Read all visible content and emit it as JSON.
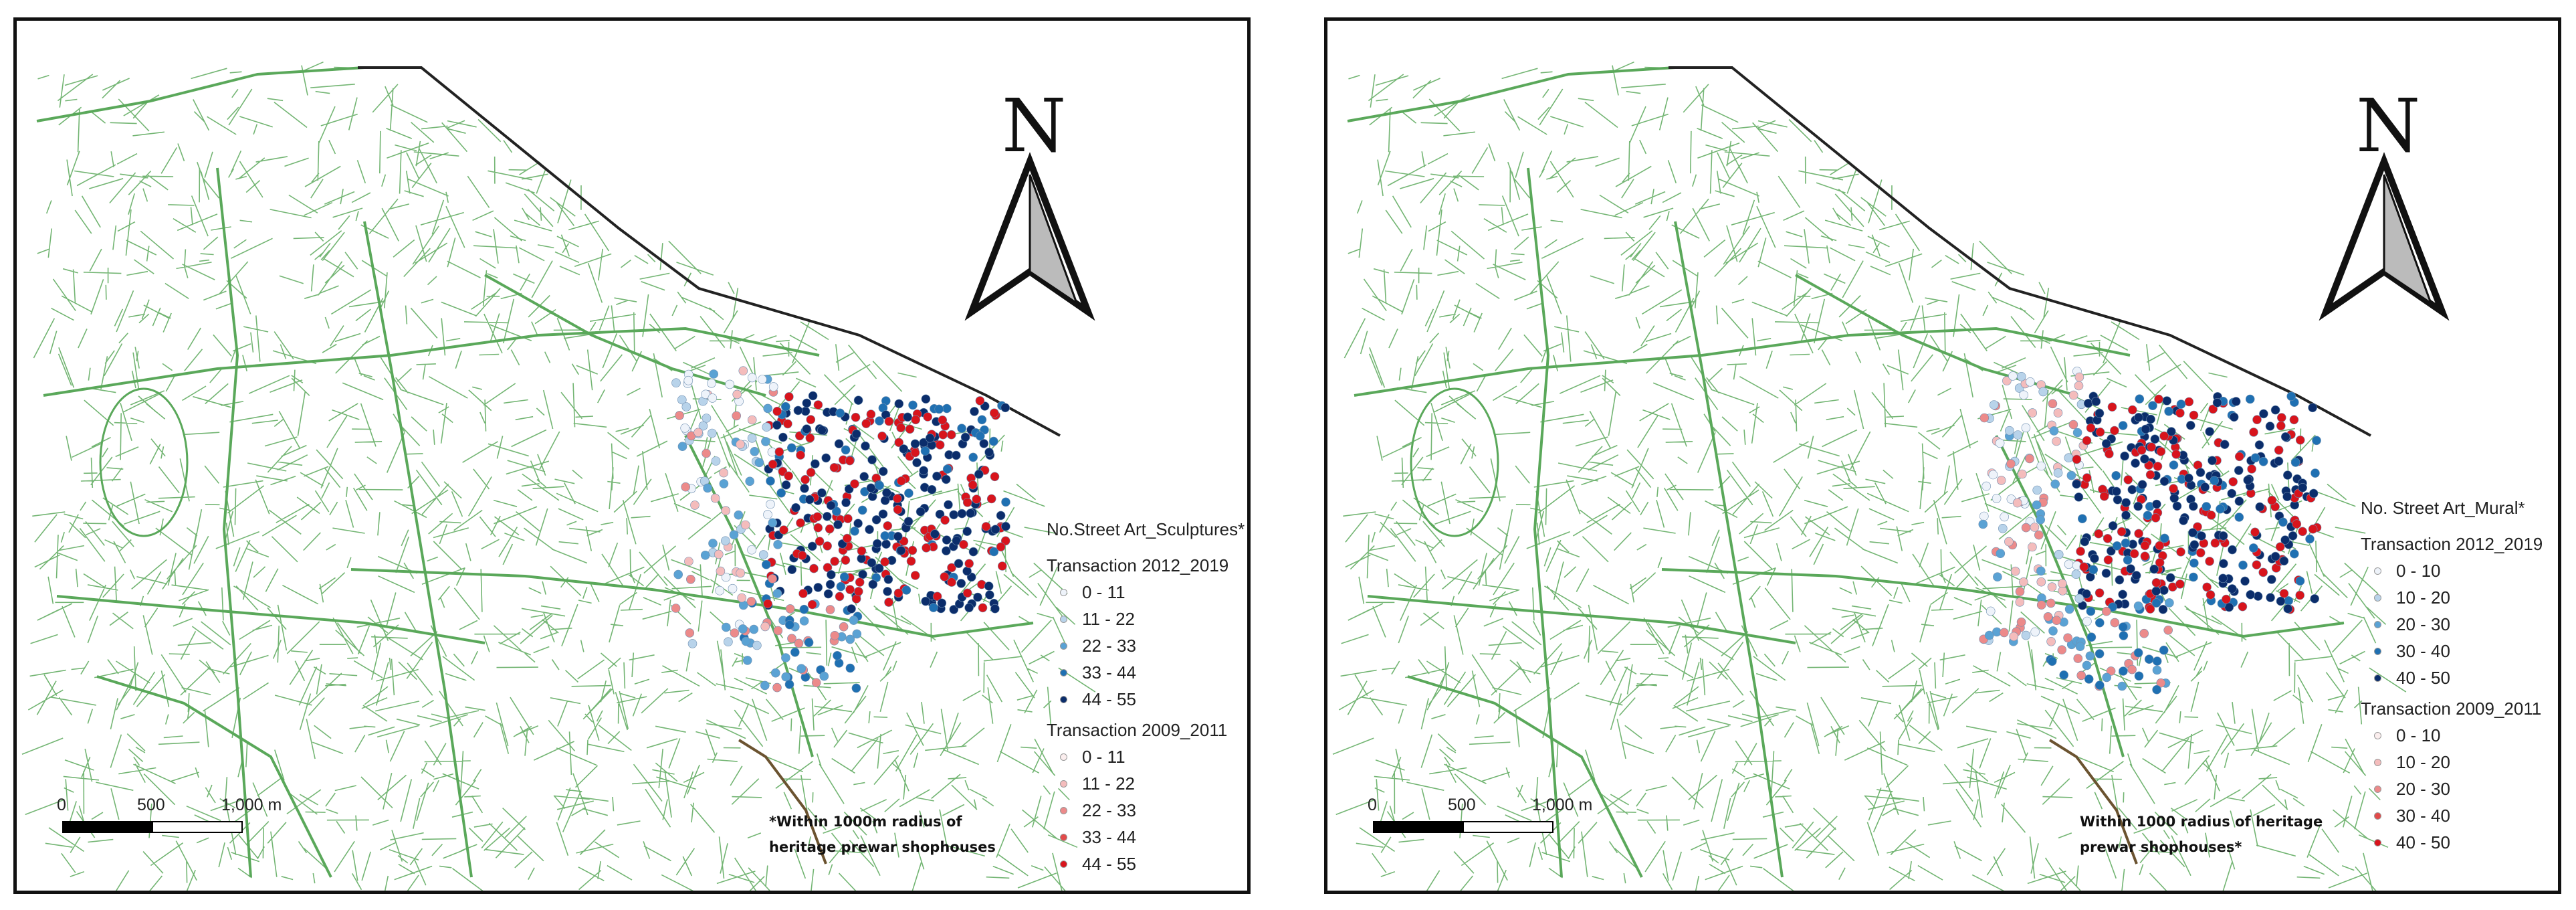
{
  "panels": [
    {
      "id": "left",
      "legend": {
        "title": "No.Street Art_Sculptures*",
        "group1_title": "Transaction 2012_2019",
        "group1": [
          {
            "label": "0 - 11",
            "color": "#eef3fa"
          },
          {
            "label": "11 - 22",
            "color": "#b8d3ea"
          },
          {
            "label": "22 - 33",
            "color": "#5aa2d4"
          },
          {
            "label": "33 - 44",
            "color": "#1f70b2"
          },
          {
            "label": "44 - 55",
            "color": "#0b2d6b"
          }
        ],
        "group2_title": "Transaction 2009_2011",
        "group2": [
          {
            "label": "0 - 11",
            "color": "#fbeeee"
          },
          {
            "label": "11 - 22",
            "color": "#f4bcbc"
          },
          {
            "label": "22 - 33",
            "color": "#ec8a8a"
          },
          {
            "label": "33 - 44",
            "color": "#e24a4a"
          },
          {
            "label": "44 - 55",
            "color": "#d8141c"
          }
        ]
      },
      "note_line1": "*Within 1000m radius of",
      "note_line2": "heritage prewar shophouses",
      "scale": {
        "l0": "0",
        "l1": "500",
        "l2": "1,000 m"
      },
      "north_label": "N"
    },
    {
      "id": "right",
      "legend": {
        "title": "No. Street Art_Mural*",
        "group1_title": "Transaction 2012_2019",
        "group1": [
          {
            "label": "0 - 10",
            "color": "#eef3fa"
          },
          {
            "label": "10 - 20",
            "color": "#b8d3ea"
          },
          {
            "label": "20 - 30",
            "color": "#5aa2d4"
          },
          {
            "label": "30 - 40",
            "color": "#1f70b2"
          },
          {
            "label": "40 - 50",
            "color": "#0b2d6b"
          }
        ],
        "group2_title": "Transaction 2009_2011",
        "group2": [
          {
            "label": "0 - 10",
            "color": "#fbeeee"
          },
          {
            "label": "10 - 20",
            "color": "#f4bcbc"
          },
          {
            "label": "20 - 30",
            "color": "#ec8a8a"
          },
          {
            "label": "30 - 40",
            "color": "#e24a4a"
          },
          {
            "label": "40 - 50",
            "color": "#d8141c"
          }
        ]
      },
      "note_line1": "Within 1000 radius of heritage",
      "note_line2": "prewar shophouses*",
      "scale": {
        "l0": "0",
        "l1": "500",
        "l2": "1,000 m"
      },
      "north_label": "N"
    }
  ],
  "colors": {
    "road": "#5aa85a",
    "coast": "#222222"
  }
}
